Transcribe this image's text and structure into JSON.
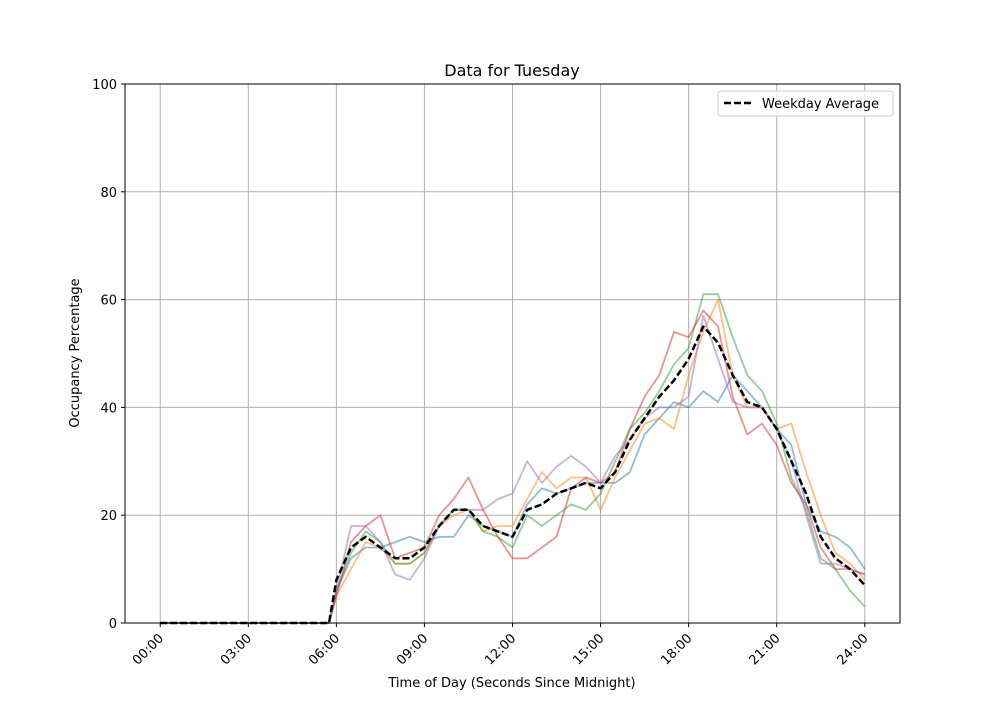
{
  "chart_data": {
    "type": "line",
    "title": "Data for Tuesday",
    "xlabel": "Time of Day (Seconds Since Midnight)",
    "ylabel": "Occupancy Percentage",
    "xlim_hours": [
      -1.2,
      25.2
    ],
    "ylim": [
      0,
      100
    ],
    "grid": true,
    "legend_position": "top-right",
    "x_tick_labels": [
      "00:00",
      "03:00",
      "06:00",
      "09:00",
      "12:00",
      "15:00",
      "18:00",
      "21:00",
      "24:00"
    ],
    "y_tick_labels": [
      "0",
      "20",
      "40",
      "60",
      "80",
      "100"
    ],
    "x_hours": [
      0,
      5.75,
      6,
      6.5,
      7,
      7.5,
      8,
      8.5,
      9,
      9.5,
      10,
      10.5,
      11,
      11.5,
      12,
      12.5,
      13,
      13.5,
      14,
      14.5,
      15,
      15.5,
      16,
      16.5,
      17,
      17.5,
      18,
      18.5,
      19,
      19.5,
      20,
      20.5,
      21,
      21.5,
      22,
      22.5,
      23,
      23.5,
      24
    ],
    "series": [
      {
        "color": "#1f77b4",
        "values": [
          0,
          0,
          6,
          12,
          14,
          14,
          15,
          16,
          15,
          16,
          16,
          20,
          18,
          17,
          16,
          22,
          25,
          24,
          25,
          26,
          26,
          26,
          28,
          35,
          38,
          41,
          40,
          43,
          41,
          46,
          43,
          40,
          36,
          33,
          22,
          17,
          16,
          14,
          10
        ]
      },
      {
        "color": "#ff7f0e",
        "values": [
          0,
          0,
          5,
          10,
          15,
          14,
          11,
          11,
          13,
          18,
          20,
          21,
          17,
          18,
          18,
          23,
          28,
          25,
          27,
          27,
          21,
          27,
          32,
          37,
          38,
          36,
          46,
          54,
          60,
          46,
          40,
          40,
          36,
          37,
          28,
          20,
          13,
          11,
          8
        ]
      },
      {
        "color": "#2ca02c",
        "values": [
          0,
          0,
          6,
          13,
          17,
          15,
          11,
          11,
          13,
          18,
          21,
          21,
          17,
          16,
          14,
          20,
          18,
          20,
          22,
          21,
          24,
          30,
          36,
          39,
          43,
          48,
          51,
          61,
          61,
          53,
          46,
          43,
          37,
          27,
          21,
          12,
          10,
          6,
          3
        ]
      },
      {
        "color": "#d62728",
        "values": [
          0,
          0,
          5,
          15,
          18,
          20,
          12,
          13,
          14,
          20,
          23,
          27,
          21,
          16,
          12,
          12,
          14,
          16,
          25,
          27,
          26,
          28,
          36,
          42,
          46,
          54,
          53,
          58,
          55,
          42,
          35,
          37,
          33,
          26,
          22,
          14,
          10,
          10,
          9
        ]
      },
      {
        "color": "#9467bd",
        "values": [
          0,
          0,
          6,
          18,
          18,
          15,
          9,
          8,
          12,
          18,
          21,
          21,
          21,
          23,
          24,
          30,
          26,
          29,
          31,
          29,
          26,
          31,
          34,
          38,
          40,
          40,
          42,
          57,
          49,
          41,
          40,
          40,
          36,
          30,
          20,
          11,
          11,
          10,
          9
        ]
      },
      {
        "name": "Weekday Average",
        "color": "#000000",
        "dashed": true,
        "values": [
          0,
          0,
          8,
          14,
          16,
          14,
          12,
          12,
          14,
          18,
          21,
          21,
          18,
          17,
          16,
          21,
          22,
          24,
          25,
          26,
          25,
          28,
          34,
          38,
          42,
          45,
          49,
          55,
          52,
          46,
          41,
          40,
          36,
          30,
          24,
          16,
          12,
          10,
          7
        ]
      }
    ]
  }
}
